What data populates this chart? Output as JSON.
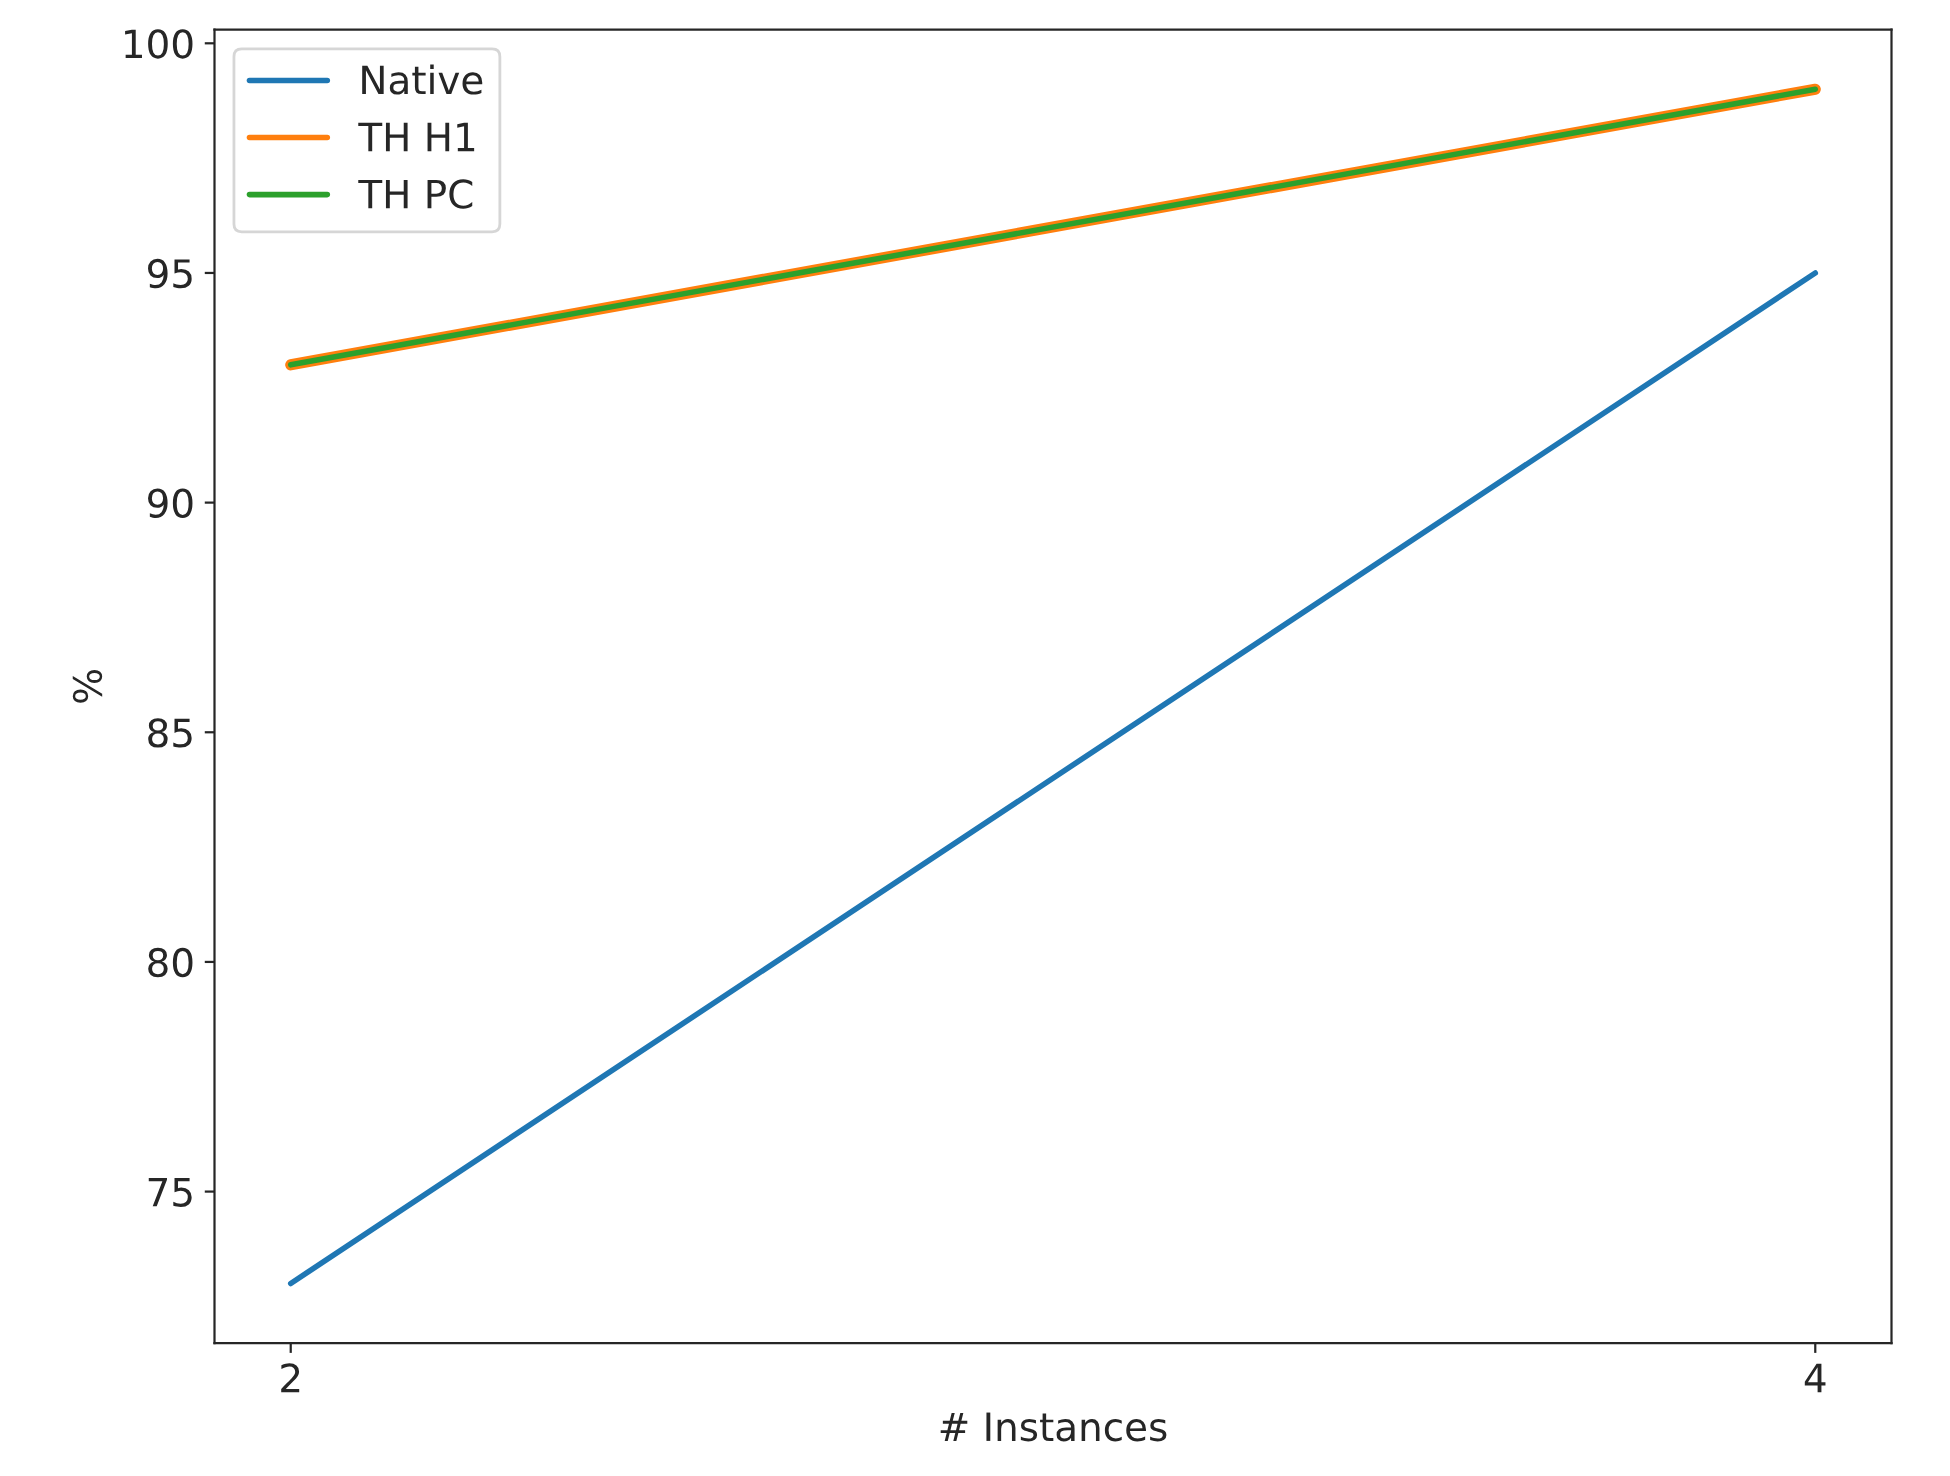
{
  "chart_data": {
    "type": "line",
    "xlabel": "# Instances",
    "ylabel": "%",
    "x": [
      2,
      4
    ],
    "series": [
      {
        "name": "Native",
        "color": "#1f77b4",
        "values": [
          73,
          95
        ]
      },
      {
        "name": "TH H1",
        "color": "#ff7f0e",
        "values": [
          93,
          99
        ]
      },
      {
        "name": "TH PC",
        "color": "#2ca02c",
        "values": [
          93,
          99
        ]
      }
    ],
    "xlim": [
      1.9,
      4.1
    ],
    "xticks": [
      2,
      4
    ],
    "ylim": [
      71.7,
      100.3
    ],
    "yticks": [
      75,
      80,
      85,
      90,
      95,
      100
    ],
    "legend": "top left",
    "grid": false
  }
}
